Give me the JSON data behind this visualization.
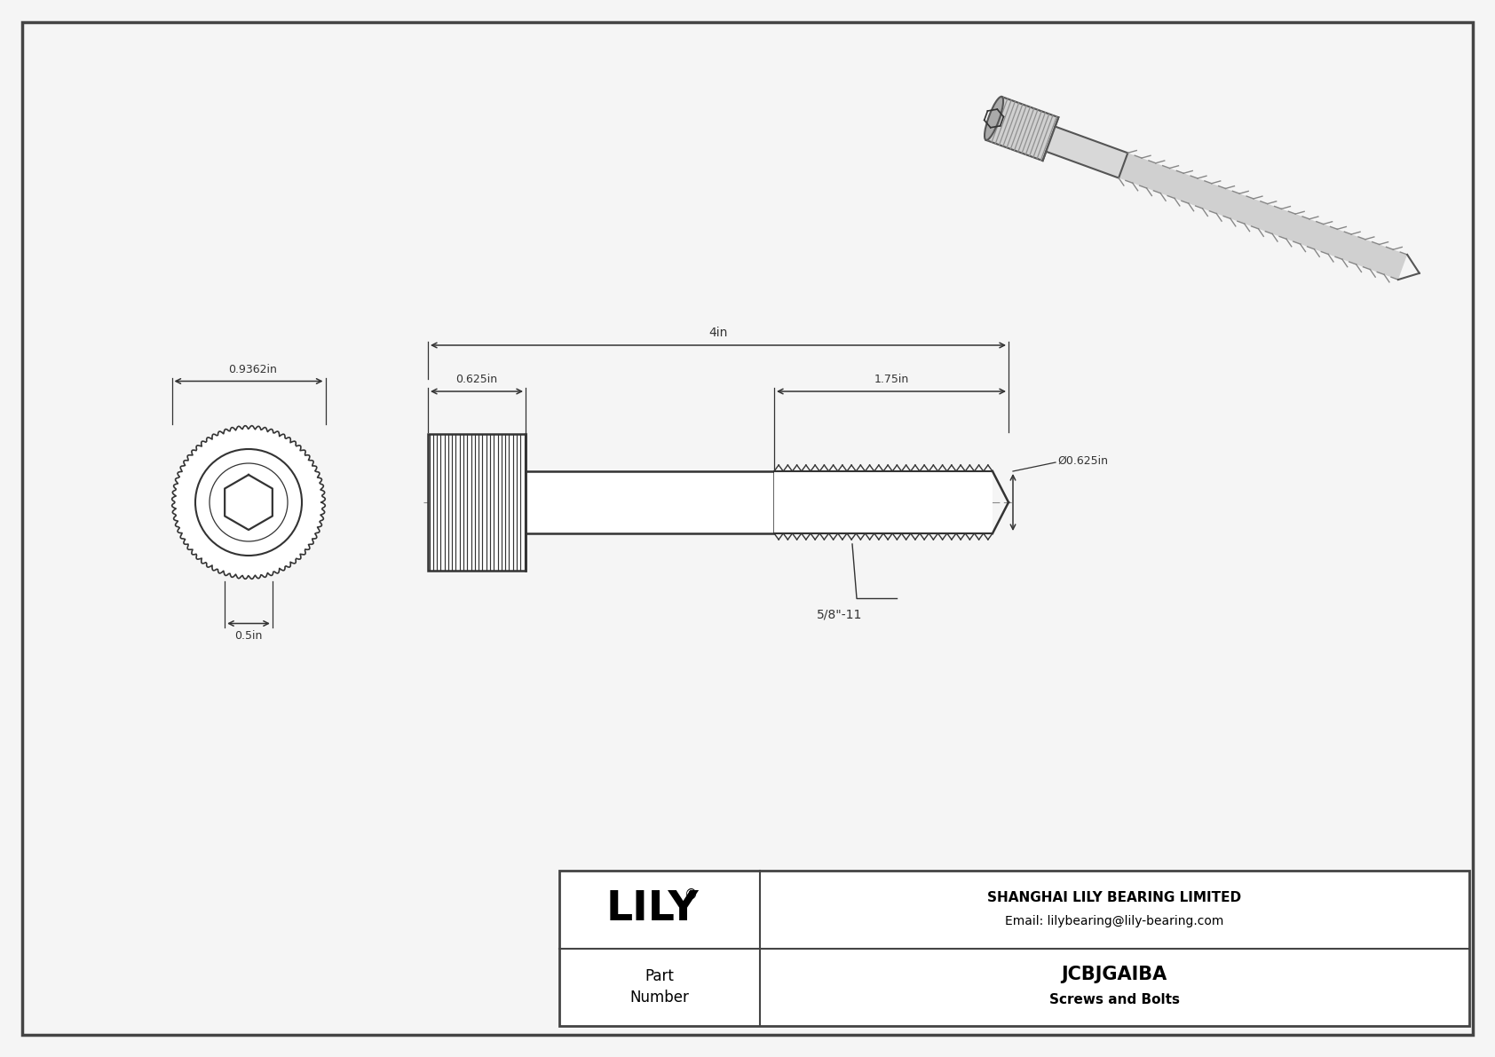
{
  "bg_color": "#e8e8e8",
  "inner_bg_color": "#f5f5f5",
  "border_color": "#444444",
  "line_color": "#333333",
  "dim_color": "#333333",
  "title": "JCBJGAIBA",
  "subtitle": "Screws and Bolts",
  "company": "SHANGHAI LILY BEARING LIMITED",
  "email": "Email: lilybearing@lily-bearing.com",
  "part_label": "Part\nNumber",
  "lily_text": "LILY",
  "dim_head_width": "0.9362in",
  "dim_head_height": "0.5in",
  "dim_head_od": "0.625in",
  "dim_body_length": "4in",
  "dim_thread_length": "1.75in",
  "dim_thread_dia": "Ø0.625in",
  "dim_thread_spec": "5/8\"-11"
}
